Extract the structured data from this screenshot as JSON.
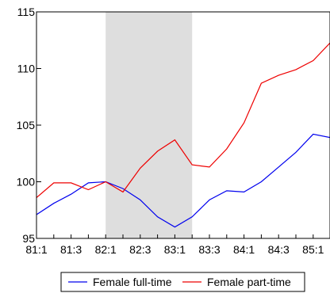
{
  "chart_data": {
    "type": "line",
    "title": "",
    "xlabel": "",
    "ylabel": "",
    "ylim": [
      95,
      115
    ],
    "yticks": [
      95,
      100,
      105,
      110,
      115
    ],
    "x": [
      "81:1",
      "81:2",
      "81:3",
      "81:4",
      "82:1",
      "82:2",
      "82:3",
      "82:4",
      "83:1",
      "83:2",
      "83:3",
      "83:4",
      "84:1",
      "84:2",
      "84:3",
      "84:4",
      "85:1",
      "85:2"
    ],
    "xtick_labels": [
      "81:1",
      "81:3",
      "82:1",
      "82:3",
      "83:1",
      "83:3",
      "84:1",
      "84:3",
      "85:1"
    ],
    "shaded_region": [
      "82:1",
      "83:2"
    ],
    "grid": false,
    "legend_position": "bottom-center",
    "series": [
      {
        "name": "Female full-time",
        "color": "#0000ee",
        "values": [
          97.1,
          98.1,
          98.9,
          99.9,
          100.0,
          99.4,
          98.4,
          96.9,
          96.0,
          96.9,
          98.4,
          99.2,
          99.1,
          100.0,
          101.3,
          102.6,
          104.2,
          103.9
        ]
      },
      {
        "name": "Female part-time",
        "color": "#ee0000",
        "values": [
          98.6,
          99.9,
          99.9,
          99.3,
          100.0,
          99.1,
          101.2,
          102.7,
          103.7,
          101.5,
          101.3,
          102.9,
          105.2,
          108.7,
          109.4,
          109.9,
          110.7,
          112.3
        ]
      }
    ],
    "shade_color": "#dedede"
  }
}
